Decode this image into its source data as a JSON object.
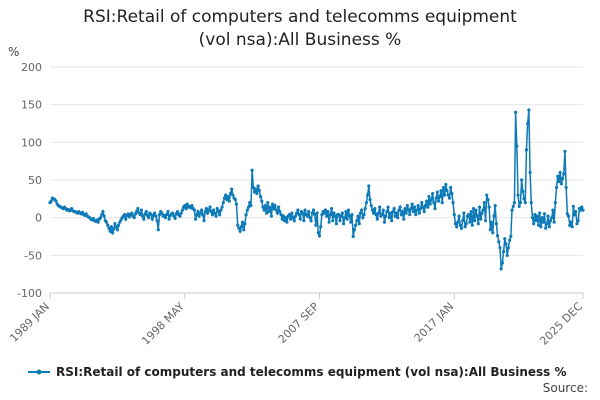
{
  "chart_data": {
    "type": "line",
    "title": "RSI:Retail of computers and telecomms equipment (vol nsa):All Business %",
    "y_label": "%",
    "source": "Source:",
    "ylim": [
      -100,
      200
    ],
    "yticks": [
      -100,
      -50,
      0,
      50,
      100,
      150,
      200
    ],
    "grid": true,
    "categories": [
      "1989 JAN",
      null,
      null,
      null,
      null,
      null,
      null,
      null,
      null,
      null,
      null,
      null,
      null,
      null,
      null,
      null,
      null,
      null,
      null,
      null,
      null,
      null,
      null,
      null,
      null,
      null,
      null,
      null,
      null,
      null,
      null,
      null,
      null,
      null,
      null,
      null,
      null,
      null,
      null,
      null,
      null,
      null,
      null,
      null,
      null,
      null,
      null,
      null,
      null,
      null,
      null,
      null,
      null,
      null,
      null,
      null,
      null,
      null,
      null,
      null,
      null,
      null,
      null,
      null,
      null,
      null,
      null,
      null,
      null,
      null,
      null,
      null,
      null,
      null,
      null,
      null,
      null,
      null,
      null,
      null,
      null,
      null,
      null,
      null,
      null,
      null,
      null,
      null,
      null,
      null,
      null,
      null,
      null,
      null,
      null,
      null,
      null,
      null,
      null,
      null,
      null,
      null,
      null,
      null,
      null,
      null,
      null,
      null,
      null,
      null,
      null,
      null,
      "1998 MAY",
      null,
      null,
      null,
      null,
      null,
      null,
      null,
      null,
      null,
      null,
      null,
      null,
      null,
      null,
      null,
      null,
      null,
      null,
      null,
      null,
      null,
      null,
      null,
      null,
      null,
      null,
      null,
      null,
      null,
      null,
      null,
      null,
      null,
      null,
      null,
      null,
      null,
      null,
      null,
      null,
      null,
      null,
      null,
      null,
      null,
      null,
      null,
      null,
      null,
      null,
      null,
      null,
      null,
      null,
      null,
      null,
      null,
      null,
      null,
      null,
      null,
      null,
      null,
      null,
      null,
      null,
      null,
      null,
      null,
      null,
      null,
      null,
      null,
      null,
      null,
      null,
      null,
      null,
      null,
      null,
      null,
      null,
      null,
      null,
      null,
      null,
      null,
      null,
      null,
      null,
      null,
      null,
      null,
      null,
      null,
      null,
      null,
      null,
      null,
      null,
      null,
      null,
      null,
      null,
      null,
      null,
      null,
      null,
      null,
      null,
      null,
      "2007 SEP",
      null,
      null,
      null,
      null,
      null,
      null,
      null,
      null,
      null,
      null,
      null,
      null,
      null,
      null,
      null,
      null,
      null,
      null,
      null,
      null,
      null,
      null,
      null,
      null,
      null,
      null,
      null,
      null,
      null,
      null,
      null,
      null,
      null,
      null,
      null,
      null,
      null,
      null,
      null,
      null,
      null,
      null,
      null,
      null,
      null,
      null,
      null,
      null,
      null,
      null,
      null,
      null,
      null,
      null,
      null,
      null,
      null,
      null,
      null,
      null,
      null,
      null,
      null,
      null,
      null,
      null,
      null,
      null,
      null,
      null,
      null,
      null,
      null,
      null,
      null,
      null,
      null,
      null,
      null,
      null,
      null,
      null,
      null,
      null,
      null,
      null,
      null,
      null,
      null,
      null,
      null,
      null,
      null,
      null,
      null,
      null,
      null,
      null,
      null,
      null,
      null,
      null,
      null,
      null,
      null,
      null,
      null,
      null,
      null,
      null,
      null,
      "2017 JAN",
      null,
      null,
      null,
      null,
      null,
      null,
      null,
      null,
      null,
      null,
      null,
      null,
      null,
      null,
      null,
      null,
      null,
      null,
      null,
      null,
      null,
      null,
      null,
      null,
      null,
      null,
      null,
      null,
      null,
      null,
      null,
      null,
      null,
      null,
      null,
      null,
      null,
      null,
      null,
      null,
      null,
      null,
      null,
      null,
      null,
      null,
      null,
      null,
      null,
      null,
      null,
      null,
      null,
      null,
      null,
      null,
      null,
      null,
      null,
      null,
      null,
      null,
      null,
      null,
      null,
      null,
      null,
      null,
      null,
      null,
      null,
      null,
      null,
      null,
      null,
      null,
      null,
      null,
      null,
      null,
      null,
      null,
      null,
      null,
      null,
      null,
      null,
      null,
      null,
      null,
      null,
      null,
      null,
      null,
      null,
      null,
      null,
      null,
      null,
      null,
      null,
      null,
      null,
      null,
      null,
      null,
      "2025 DEC"
    ],
    "series": [
      {
        "name": "RSI:Retail of computers and telecomms equipment (vol nsa):All Business %",
        "color": "#0e7ab8",
        "values": [
          20,
          22,
          26,
          25,
          24,
          22,
          18,
          16,
          15,
          14,
          13,
          12,
          14,
          12,
          10,
          11,
          9,
          10,
          12,
          9,
          8,
          8,
          7,
          6,
          8,
          6,
          5,
          7,
          4,
          3,
          5,
          2,
          1,
          0,
          -2,
          -3,
          -1,
          -4,
          -5,
          -3,
          -6,
          -2,
          0,
          4,
          8,
          2,
          -4,
          -6,
          -10,
          -14,
          -18,
          -12,
          -20,
          -15,
          -8,
          -12,
          -16,
          -10,
          -6,
          -3,
          0,
          2,
          4,
          -2,
          3,
          5,
          1,
          4,
          6,
          2,
          0,
          5,
          8,
          12,
          6,
          4,
          10,
          2,
          -2,
          5,
          8,
          3,
          0,
          6,
          4,
          -2,
          3,
          6,
          2,
          -4,
          -16,
          4,
          8,
          6,
          2,
          3,
          0,
          4,
          8,
          -2,
          3,
          5,
          6,
          2,
          -1,
          5,
          8,
          4,
          2,
          6,
          10,
          14,
          16,
          12,
          18,
          14,
          15,
          13,
          16,
          12,
          10,
          -2,
          4,
          8,
          2,
          6,
          10,
          4,
          -4,
          8,
          12,
          6,
          10,
          14,
          8,
          4,
          10,
          6,
          2,
          12,
          8,
          4,
          10,
          14,
          20,
          26,
          30,
          24,
          28,
          22,
          32,
          38,
          30,
          26,
          24,
          18,
          -10,
          -14,
          -18,
          -12,
          -6,
          -16,
          -8,
          4,
          10,
          14,
          20,
          16,
          63,
          40,
          34,
          38,
          32,
          42,
          36,
          28,
          22,
          14,
          10,
          16,
          6,
          20,
          8,
          14,
          2,
          18,
          12,
          16,
          10,
          6,
          14,
          8,
          4,
          -2,
          2,
          -4,
          0,
          -6,
          2,
          4,
          -2,
          6,
          0,
          -4,
          2,
          6,
          10,
          4,
          -2,
          8,
          6,
          -4,
          10,
          4,
          2,
          8,
          0,
          -4,
          6,
          10,
          4,
          -10,
          6,
          -20,
          -24,
          -12,
          4,
          8,
          6,
          10,
          2,
          8,
          -6,
          4,
          12,
          -4,
          6,
          2,
          -8,
          4,
          4,
          -4,
          2,
          6,
          -8,
          0,
          8,
          -2,
          10,
          2,
          -6,
          4,
          -25,
          -16,
          -10,
          -4,
          2,
          -8,
          6,
          10,
          0,
          4,
          12,
          20,
          30,
          42,
          24,
          16,
          10,
          6,
          12,
          4,
          -2,
          6,
          14,
          2,
          4,
          10,
          -6,
          2,
          8,
          14,
          0,
          6,
          -4,
          8,
          12,
          2,
          6,
          0,
          10,
          14,
          4,
          8,
          -2,
          12,
          6,
          16,
          10,
          4,
          12,
          18,
          8,
          14,
          4,
          10,
          16,
          6,
          12,
          20,
          14,
          8,
          16,
          22,
          14,
          28,
          18,
          24,
          32,
          20,
          12,
          26,
          34,
          22,
          28,
          36,
          20,
          40,
          30,
          44,
          36,
          30,
          26,
          40,
          32,
          20,
          4,
          -8,
          -12,
          -6,
          2,
          -10,
          -14,
          -4,
          6,
          -12,
          -8,
          2,
          4,
          -6,
          8,
          -10,
          12,
          -4,
          10,
          2,
          -8,
          14,
          -2,
          6,
          10,
          20,
          -4,
          30,
          24,
          14,
          -16,
          -6,
          -20,
          2,
          16,
          -8,
          -24,
          -32,
          -40,
          -68,
          -60,
          -45,
          -28,
          -35,
          -50,
          -40,
          -30,
          -25,
          10,
          15,
          20,
          140,
          95,
          30,
          15,
          20,
          50,
          35,
          25,
          20,
          90,
          125,
          143,
          60,
          20,
          0,
          -8,
          4,
          -4,
          2,
          -10,
          6,
          -12,
          0,
          -6,
          5,
          -14,
          -8,
          2,
          -12,
          -4,
          0,
          10,
          -6,
          20,
          40,
          55,
          48,
          60,
          45,
          52,
          58,
          88,
          40,
          5,
          2,
          -10,
          -6,
          -12,
          15,
          4,
          8,
          -8,
          -4,
          12,
          10,
          14,
          10
        ]
      }
    ]
  }
}
